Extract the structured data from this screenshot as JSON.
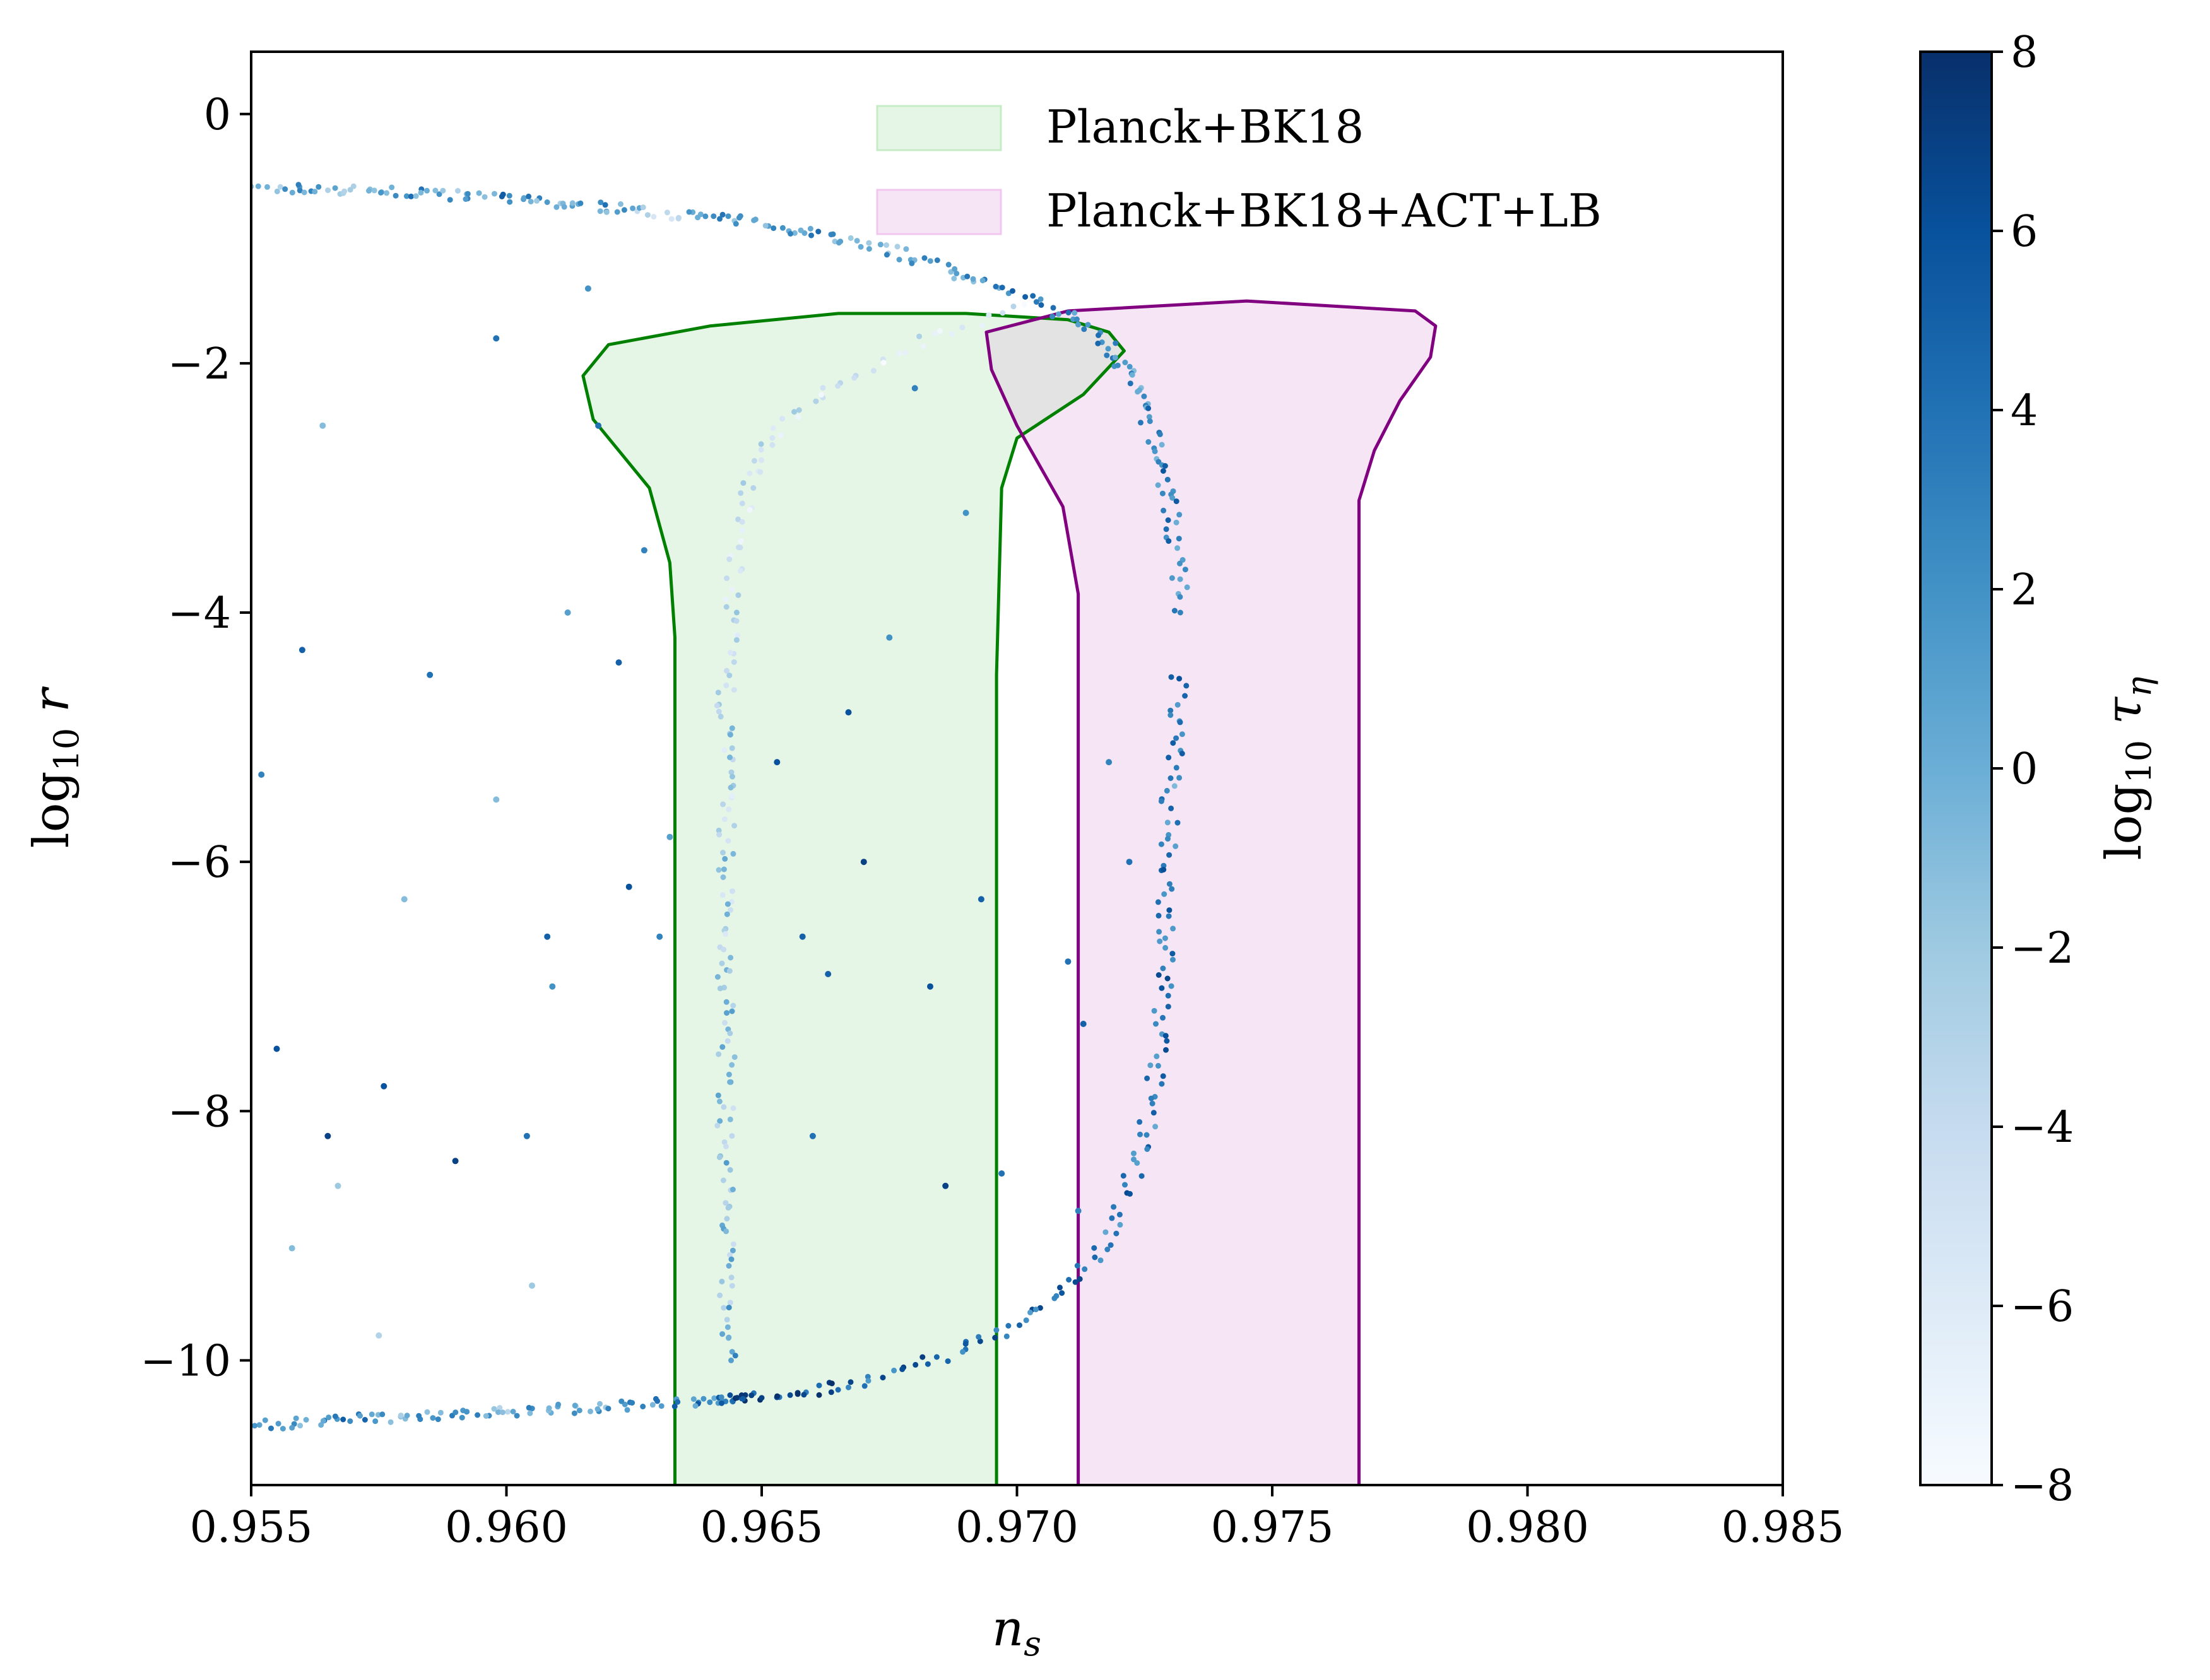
{
  "chart_data": {
    "type": "scatter",
    "xlabel": "n_s",
    "ylabel": "log10 r",
    "xlim": [
      0.955,
      0.985
    ],
    "ylim": [
      -11,
      0.5
    ],
    "x_ticks": [
      0.955,
      0.96,
      0.965,
      0.97,
      0.975,
      0.98,
      0.985
    ],
    "x_tick_labels": [
      "0.955",
      "0.960",
      "0.965",
      "0.970",
      "0.975",
      "0.980",
      "0.985"
    ],
    "y_ticks": [
      0,
      -2,
      -4,
      -6,
      -8,
      -10
    ],
    "y_tick_labels": [
      "0",
      "−2",
      "−4",
      "−6",
      "−8",
      "−10"
    ],
    "grid": false,
    "legend_position": "top-right",
    "colorbar": {
      "label": "log10 τ_η",
      "range": [
        -8,
        8
      ],
      "ticks": [
        8,
        6,
        4,
        2,
        0,
        -2,
        -4,
        -6,
        -8
      ],
      "tick_labels": [
        "8",
        "6",
        "4",
        "2",
        "0",
        "−2",
        "−4",
        "−6",
        "−8"
      ],
      "colormap_low": "#f7fbff",
      "colormap_high": "#08306b"
    },
    "regions": [
      {
        "name": "Planck+BK18",
        "fill": "#e6f6e6",
        "edge": "#008000",
        "boundary": [
          [
            0.9633,
            -11.0
          ],
          [
            0.9633,
            -4.2
          ],
          [
            0.9632,
            -3.6
          ],
          [
            0.9628,
            -3.0
          ],
          [
            0.9622,
            -2.7
          ],
          [
            0.9617,
            -2.45
          ],
          [
            0.9615,
            -2.1
          ],
          [
            0.962,
            -1.85
          ],
          [
            0.964,
            -1.7
          ],
          [
            0.9665,
            -1.6
          ],
          [
            0.969,
            -1.6
          ],
          [
            0.971,
            -1.65
          ],
          [
            0.9718,
            -1.75
          ],
          [
            0.9721,
            -1.9
          ],
          [
            0.9713,
            -2.25
          ],
          [
            0.97,
            -2.6
          ],
          [
            0.9697,
            -3.0
          ],
          [
            0.9696,
            -4.5
          ],
          [
            0.9696,
            -11.0
          ]
        ]
      },
      {
        "name": "Planck+BK18+ACT+LB",
        "fill": "#f6e6f5",
        "edge": "#800080",
        "boundary": [
          [
            0.9712,
            -11.0
          ],
          [
            0.9712,
            -3.85
          ],
          [
            0.9709,
            -3.15
          ],
          [
            0.97,
            -2.5
          ],
          [
            0.9695,
            -2.05
          ],
          [
            0.9694,
            -1.75
          ],
          [
            0.971,
            -1.58
          ],
          [
            0.9745,
            -1.5
          ],
          [
            0.9778,
            -1.58
          ],
          [
            0.9782,
            -1.7
          ],
          [
            0.9781,
            -1.95
          ],
          [
            0.9775,
            -2.3
          ],
          [
            0.977,
            -2.7
          ],
          [
            0.9767,
            -3.1
          ],
          [
            0.9767,
            -11.0
          ]
        ]
      }
    ],
    "overlap_fill": "#e3e3e3",
    "series": [
      {
        "name": "upper branch",
        "points": [
          [
            0.955,
            -0.6,
            -2
          ],
          [
            0.956,
            -0.6,
            1
          ],
          [
            0.957,
            -0.61,
            -3
          ],
          [
            0.958,
            -0.63,
            2
          ],
          [
            0.959,
            -0.65,
            0
          ],
          [
            0.96,
            -0.68,
            3
          ],
          [
            0.961,
            -0.72,
            -1
          ],
          [
            0.962,
            -0.75,
            2
          ],
          [
            0.963,
            -0.79,
            -4
          ],
          [
            0.964,
            -0.83,
            1
          ],
          [
            0.965,
            -0.88,
            0
          ],
          [
            0.966,
            -0.95,
            3
          ],
          [
            0.967,
            -1.05,
            -2
          ],
          [
            0.968,
            -1.15,
            2
          ],
          [
            0.969,
            -1.3,
            1
          ],
          [
            0.97,
            -1.45,
            3
          ],
          [
            0.971,
            -1.62,
            2
          ],
          [
            0.9718,
            -1.85,
            4
          ],
          [
            0.9722,
            -2.1,
            1
          ],
          [
            0.9725,
            -2.4,
            3
          ],
          [
            0.9728,
            -2.75,
            2
          ],
          [
            0.973,
            -3.1,
            4
          ],
          [
            0.9731,
            -3.5,
            2
          ],
          [
            0.9732,
            -4.0,
            3
          ]
        ]
      },
      {
        "name": "outer arc",
        "points": [
          [
            0.9732,
            -4.5,
            4
          ],
          [
            0.9731,
            -5.0,
            3
          ],
          [
            0.973,
            -5.5,
            2
          ],
          [
            0.973,
            -6.0,
            4
          ],
          [
            0.9729,
            -6.5,
            3
          ],
          [
            0.9729,
            -7.0,
            5
          ],
          [
            0.9728,
            -7.5,
            4
          ],
          [
            0.9726,
            -8.0,
            3
          ],
          [
            0.9723,
            -8.5,
            4
          ],
          [
            0.9718,
            -9.0,
            3
          ],
          [
            0.971,
            -9.4,
            5
          ],
          [
            0.97,
            -9.7,
            4
          ],
          [
            0.9688,
            -9.95,
            5
          ],
          [
            0.9672,
            -10.15,
            4
          ],
          [
            0.966,
            -10.25,
            6
          ],
          [
            0.965,
            -10.3,
            7
          ]
        ]
      },
      {
        "name": "lower branch",
        "points": [
          [
            0.955,
            -10.52,
            2
          ],
          [
            0.956,
            -10.5,
            1
          ],
          [
            0.957,
            -10.47,
            3
          ],
          [
            0.958,
            -10.45,
            0
          ],
          [
            0.959,
            -10.43,
            2
          ],
          [
            0.96,
            -10.41,
            -1
          ],
          [
            0.961,
            -10.39,
            1
          ],
          [
            0.962,
            -10.37,
            0
          ],
          [
            0.963,
            -10.35,
            2
          ],
          [
            0.964,
            -10.32,
            3
          ],
          [
            0.9645,
            -10.3,
            6
          ],
          [
            0.9648,
            -10.28,
            7
          ]
        ]
      },
      {
        "name": "inner branch",
        "points": [
          [
            0.97,
            -1.55,
            -6
          ],
          [
            0.968,
            -1.85,
            -5
          ],
          [
            0.9662,
            -2.2,
            -6
          ],
          [
            0.9652,
            -2.6,
            -4
          ],
          [
            0.9647,
            -3.0,
            -5
          ],
          [
            0.9645,
            -3.5,
            -6
          ],
          [
            0.9644,
            -4.0,
            -4
          ],
          [
            0.9643,
            -4.5,
            -5
          ],
          [
            0.9643,
            -5.0,
            -3
          ],
          [
            0.9643,
            -5.5,
            -4
          ],
          [
            0.9643,
            -6.0,
            -2
          ],
          [
            0.9643,
            -6.5,
            -3
          ],
          [
            0.9643,
            -7.0,
            -2
          ],
          [
            0.9643,
            -7.5,
            -1
          ],
          [
            0.9643,
            -8.0,
            -2
          ],
          [
            0.9643,
            -8.5,
            -1
          ],
          [
            0.9643,
            -9.0,
            -2
          ],
          [
            0.9643,
            -9.5,
            -1
          ],
          [
            0.9644,
            -10.0,
            1
          ]
        ]
      },
      {
        "name": "scattered",
        "points": [
          [
            0.9552,
            -5.3,
            3
          ],
          [
            0.9555,
            -7.5,
            6
          ],
          [
            0.9558,
            -9.1,
            -1
          ],
          [
            0.956,
            -4.3,
            5
          ],
          [
            0.9564,
            -2.5,
            -1
          ],
          [
            0.9565,
            -8.2,
            7
          ],
          [
            0.9567,
            -8.6,
            -2
          ],
          [
            0.9575,
            -9.8,
            -3
          ],
          [
            0.9576,
            -7.8,
            6
          ],
          [
            0.958,
            -6.3,
            -1
          ],
          [
            0.9585,
            -4.5,
            4
          ],
          [
            0.959,
            -8.4,
            7
          ],
          [
            0.9598,
            -1.8,
            4
          ],
          [
            0.9598,
            -5.5,
            -1
          ],
          [
            0.9604,
            -8.2,
            4
          ],
          [
            0.9605,
            -9.4,
            -2
          ],
          [
            0.9608,
            -6.6,
            5
          ],
          [
            0.9609,
            -7.0,
            2
          ],
          [
            0.9612,
            -4.0,
            1
          ],
          [
            0.9616,
            -1.4,
            2
          ],
          [
            0.9618,
            -2.5,
            4
          ],
          [
            0.9622,
            -4.4,
            5
          ],
          [
            0.9624,
            -6.2,
            6
          ],
          [
            0.9627,
            -3.5,
            3
          ],
          [
            0.963,
            -6.6,
            3
          ],
          [
            0.9632,
            -5.8,
            1
          ],
          [
            0.9653,
            -5.2,
            6
          ],
          [
            0.9658,
            -6.6,
            5
          ],
          [
            0.966,
            -8.2,
            4
          ],
          [
            0.9663,
            -6.9,
            5
          ],
          [
            0.9667,
            -4.8,
            6
          ],
          [
            0.967,
            -6.0,
            7
          ],
          [
            0.9675,
            -4.2,
            2
          ],
          [
            0.968,
            -2.2,
            3
          ],
          [
            0.9683,
            -7.0,
            6
          ],
          [
            0.9686,
            -8.6,
            7
          ],
          [
            0.969,
            -3.2,
            2
          ],
          [
            0.9693,
            -6.3,
            5
          ],
          [
            0.9697,
            -8.5,
            4
          ],
          [
            0.971,
            -6.8,
            4
          ],
          [
            0.9713,
            -7.3,
            5
          ],
          [
            0.9718,
            -5.2,
            3
          ],
          [
            0.9722,
            -6.0,
            4
          ],
          [
            0.9712,
            -8.8,
            3
          ]
        ]
      }
    ]
  },
  "legend": [
    {
      "label": "Planck+BK18",
      "color": "#e6f6e6",
      "edge": "#c6ecc6"
    },
    {
      "label": "Planck+BK18+ACT+LB",
      "color": "#f6e6f5",
      "edge": "#f2c6ee"
    }
  ]
}
